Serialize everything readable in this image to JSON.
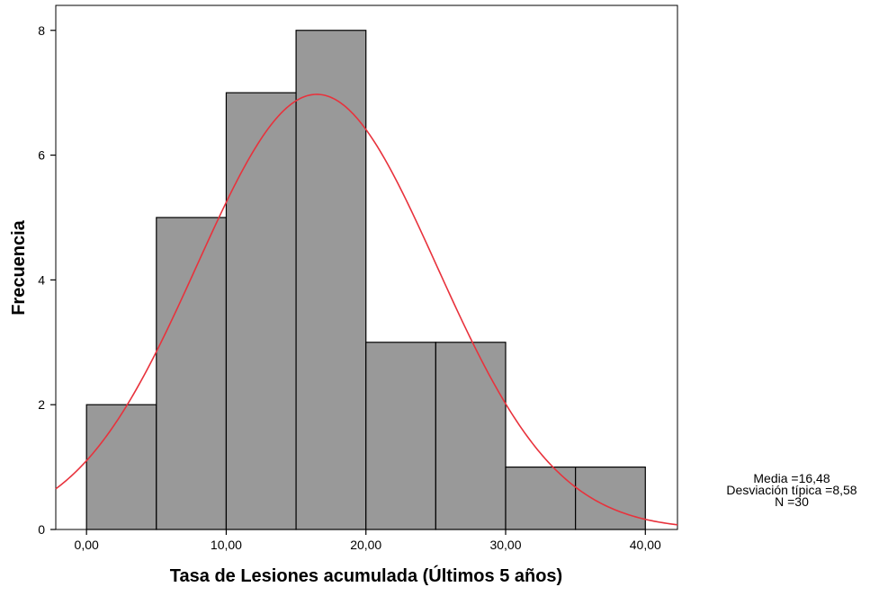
{
  "chart_data": {
    "type": "bar",
    "subtype": "histogram",
    "xlabel": "Tasa de Lesiones acumulada (Últimos 5 años)",
    "ylabel": "Frecuencia",
    "bins": [
      {
        "start": 0,
        "end": 5,
        "count": 2
      },
      {
        "start": 5,
        "end": 10,
        "count": 5
      },
      {
        "start": 10,
        "end": 15,
        "count": 7
      },
      {
        "start": 15,
        "end": 20,
        "count": 8
      },
      {
        "start": 20,
        "end": 25,
        "count": 3
      },
      {
        "start": 25,
        "end": 30,
        "count": 3
      },
      {
        "start": 30,
        "end": 35,
        "count": 1
      },
      {
        "start": 35,
        "end": 40,
        "count": 1
      }
    ],
    "xlim": [
      -2.2,
      42.3
    ],
    "ylim": [
      0,
      8.4
    ],
    "x_ticks": [
      0,
      10,
      20,
      30,
      40
    ],
    "x_tick_labels": [
      "0,00",
      "10,00",
      "20,00",
      "30,00",
      "40,00"
    ],
    "y_ticks": [
      0,
      2,
      4,
      6,
      8
    ],
    "y_tick_labels": [
      "0",
      "2",
      "4",
      "6",
      "8"
    ],
    "normal_curve": {
      "mean": 16.48,
      "sd": 8.58,
      "n": 30,
      "bin_width": 5
    },
    "grid": false,
    "colors": {
      "bar_fill": "#999999",
      "bar_stroke": "#000000",
      "curve": "#e8323c"
    }
  },
  "stats_box": {
    "mean_text": "Media =16,48",
    "sd_text": "Desviación típica =8,58",
    "n_text": "N =30"
  }
}
